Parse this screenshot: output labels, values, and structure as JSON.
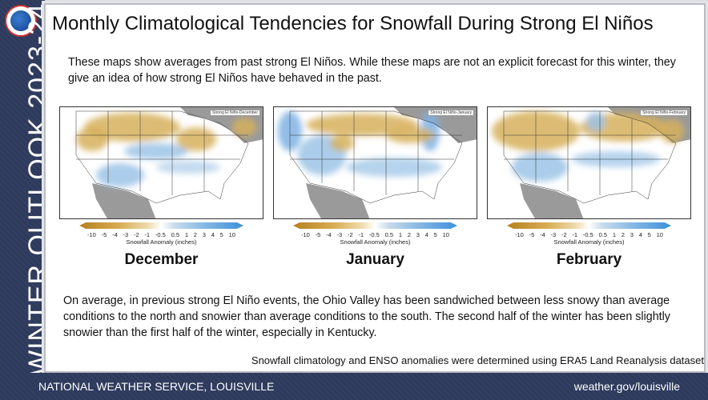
{
  "sidebar": {
    "vertical_title": "WINTER OUTLOOK 2023-24",
    "logo_icon": "noaa-nws-logo"
  },
  "header": {
    "title": "Monthly Climatological Tendencies for Snowfall During Strong El Niños"
  },
  "intro": "These maps show averages from past strong El Niños. While these maps are not an explicit forecast for this winter, they give an idea of how strong El Niños have behaved in the past.",
  "colorbar": {
    "ticks": [
      "-10",
      "-5",
      "-4",
      "-3",
      "-2",
      "-1",
      "-0.5",
      "0.5",
      "1",
      "2",
      "3",
      "4",
      "5",
      "10"
    ],
    "label": "Snowfall Anomaly (inches)",
    "colors": {
      "negative": "#b5801e",
      "neutral": "#ffffff",
      "positive": "#3d8fdb"
    }
  },
  "maps": [
    {
      "tag": "Strong El Niño-December",
      "month": "December"
    },
    {
      "tag": "Strong El Niño-January",
      "month": "January"
    },
    {
      "tag": "Strong El Niño-February",
      "month": "February"
    }
  ],
  "summary": "On average, in previous strong El Niño events, the Ohio Valley has been sandwiched between less snowy than average conditions to the north and snowier than average conditions to the south. The second half of the winter has been slightly snowier than the first half of the winter, especially in Kentucky.",
  "source": "Snowfall climatology and ENSO anomalies were determined using ERA5 Land Reanalysis dataset",
  "footer": {
    "left": "NATIONAL WEATHER SERVICE, LOUISVILLE",
    "right": "weather.gov/louisville"
  }
}
